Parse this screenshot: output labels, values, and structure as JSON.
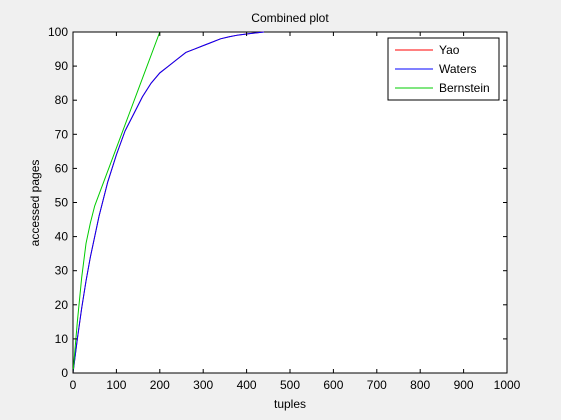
{
  "chart_data": {
    "type": "line",
    "title": "Combined plot",
    "xlabel": "tuples",
    "ylabel": "accessed pages",
    "xlim": [
      0,
      1000
    ],
    "ylim": [
      0,
      100
    ],
    "xticks": [
      "0",
      "100",
      "200",
      "300",
      "400",
      "500",
      "600",
      "700",
      "800",
      "900",
      "1000"
    ],
    "yticks": [
      "0",
      "10",
      "20",
      "30",
      "40",
      "50",
      "60",
      "70",
      "80",
      "90",
      "100"
    ],
    "grid": false,
    "legend_position": "top-right",
    "series": [
      {
        "name": "Yao",
        "color": "#ff0000",
        "x": [
          0,
          10,
          20,
          30,
          40,
          50,
          60,
          80,
          100,
          120,
          140,
          160,
          180,
          200,
          220,
          240,
          260,
          280,
          300,
          320,
          340,
          360,
          380,
          400,
          420,
          440
        ],
        "y": [
          0,
          10,
          19,
          27,
          34,
          40,
          46,
          56,
          64,
          71,
          76,
          81,
          85,
          88,
          90,
          92,
          94,
          95,
          96,
          97,
          98,
          98.6,
          99.1,
          99.4,
          99.7,
          100
        ]
      },
      {
        "name": "Waters",
        "color": "#0000ff",
        "x": [
          0,
          10,
          20,
          30,
          40,
          50,
          60,
          80,
          100,
          120,
          140,
          160,
          180,
          200,
          220,
          240,
          260,
          280,
          300,
          320,
          340,
          360,
          380,
          400,
          420,
          440
        ],
        "y": [
          0,
          10,
          19,
          27,
          34,
          40,
          46,
          56,
          64,
          71,
          76,
          81,
          85,
          88,
          90,
          92,
          94,
          95,
          96,
          97,
          98,
          98.6,
          99.1,
          99.4,
          99.7,
          100
        ]
      },
      {
        "name": "Bernstein",
        "color": "#00cc00",
        "x": [
          0,
          10,
          20,
          30,
          40,
          50,
          100,
          150,
          200
        ],
        "y": [
          0,
          15,
          28,
          38,
          44,
          49,
          66,
          83,
          100
        ]
      }
    ]
  }
}
